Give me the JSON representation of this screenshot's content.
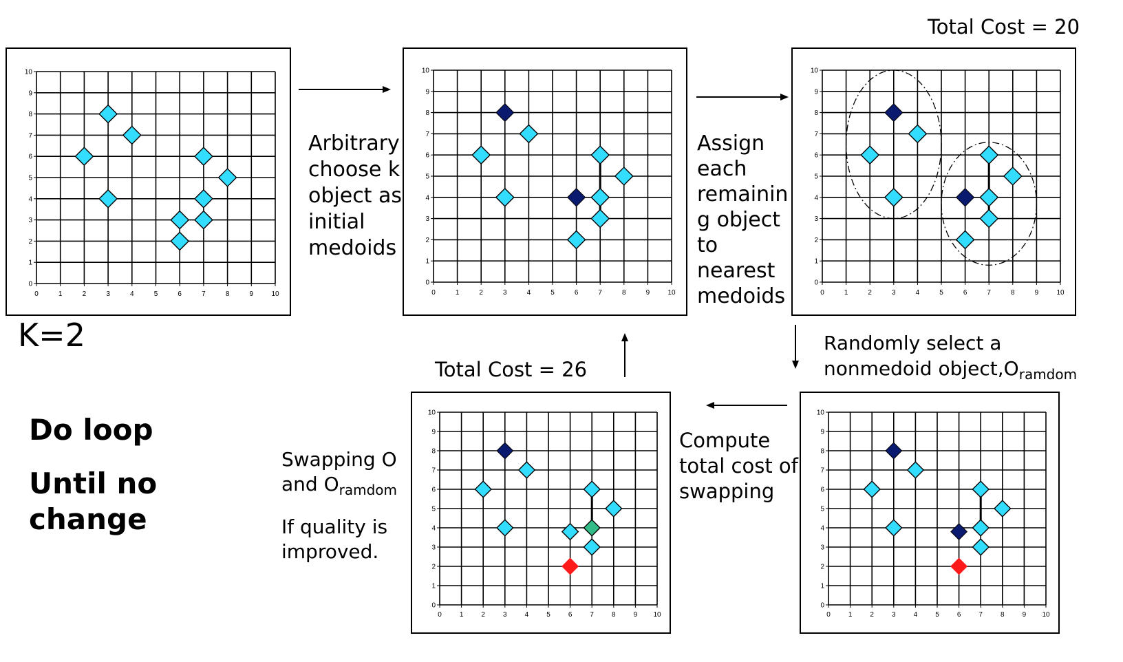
{
  "k_label": "K=2",
  "loop": {
    "line1": "Do loop",
    "line2": "Until no",
    "line3": "change"
  },
  "steps": {
    "choose": [
      "Arbitrary",
      "choose k",
      "object as",
      "initial",
      "medoids"
    ],
    "assign": [
      "Assign",
      "each",
      "remainin",
      "g object",
      "to",
      "nearest",
      "medoids"
    ],
    "random": {
      "line1": "Randomly select a",
      "line2": "nonmedoid object,O",
      "line2_sub": "ramdom"
    },
    "compute": [
      "Compute",
      "total cost of",
      "swapping"
    ],
    "swap": {
      "line1": "Swapping O",
      "line2": "and O",
      "line2_sub": "ramdom",
      "line3": "If quality is",
      "line4": "improved."
    }
  },
  "costs": {
    "top_right": "Total Cost = 20",
    "bottom_left": "Total Cost = 26"
  },
  "colors": {
    "point": "#33ddff",
    "medoid": "#0a1a6e",
    "random": "#ff1a1a",
    "swapped": "#33bb88"
  },
  "chart_data": [
    {
      "type": "scatter",
      "title": "",
      "xlim": [
        0,
        10
      ],
      "ylim": [
        0,
        10
      ],
      "ticks": [
        0,
        1,
        2,
        3,
        4,
        5,
        6,
        7,
        8,
        9,
        10
      ],
      "grid": true,
      "points": [
        {
          "x": 2,
          "y": 6,
          "role": "point"
        },
        {
          "x": 3,
          "y": 8,
          "role": "point"
        },
        {
          "x": 3,
          "y": 4,
          "role": "point"
        },
        {
          "x": 4,
          "y": 7,
          "role": "point"
        },
        {
          "x": 6,
          "y": 2,
          "role": "point"
        },
        {
          "x": 6,
          "y": 3,
          "role": "point"
        },
        {
          "x": 7,
          "y": 4,
          "role": "point"
        },
        {
          "x": 7,
          "y": 3,
          "role": "point"
        },
        {
          "x": 7,
          "y": 6,
          "role": "point"
        },
        {
          "x": 8,
          "y": 5,
          "role": "point"
        }
      ]
    },
    {
      "type": "scatter",
      "title": "",
      "xlim": [
        0,
        10
      ],
      "ylim": [
        0,
        10
      ],
      "ticks": [
        0,
        1,
        2,
        3,
        4,
        5,
        6,
        7,
        8,
        9,
        10
      ],
      "grid": true,
      "points": [
        {
          "x": 3,
          "y": 8,
          "role": "medoid"
        },
        {
          "x": 6,
          "y": 4,
          "role": "medoid"
        },
        {
          "x": 2,
          "y": 6,
          "role": "point"
        },
        {
          "x": 3,
          "y": 4,
          "role": "point"
        },
        {
          "x": 4,
          "y": 7,
          "role": "point"
        },
        {
          "x": 7,
          "y": 6,
          "role": "point"
        },
        {
          "x": 8,
          "y": 5,
          "role": "point"
        },
        {
          "x": 7,
          "y": 4,
          "role": "point"
        },
        {
          "x": 7,
          "y": 3,
          "role": "point"
        },
        {
          "x": 6,
          "y": 2,
          "role": "point"
        }
      ]
    },
    {
      "type": "scatter",
      "title": "",
      "xlim": [
        0,
        10
      ],
      "ylim": [
        0,
        10
      ],
      "ticks": [
        0,
        1,
        2,
        3,
        4,
        5,
        6,
        7,
        8,
        9,
        10
      ],
      "grid": true,
      "clusters": [
        {
          "cx": 3,
          "cy": 6.5,
          "rx": 2,
          "ry": 3.5
        },
        {
          "cx": 7,
          "cy": 3.7,
          "rx": 2,
          "ry": 2.9
        }
      ],
      "points": [
        {
          "x": 3,
          "y": 8,
          "role": "medoid"
        },
        {
          "x": 6,
          "y": 4,
          "role": "medoid"
        },
        {
          "x": 2,
          "y": 6,
          "role": "point"
        },
        {
          "x": 3,
          "y": 4,
          "role": "point"
        },
        {
          "x": 4,
          "y": 7,
          "role": "point"
        },
        {
          "x": 7,
          "y": 6,
          "role": "point"
        },
        {
          "x": 8,
          "y": 5,
          "role": "point"
        },
        {
          "x": 7,
          "y": 4,
          "role": "point"
        },
        {
          "x": 7,
          "y": 3,
          "role": "point"
        },
        {
          "x": 6,
          "y": 2,
          "role": "point"
        }
      ]
    },
    {
      "type": "scatter",
      "title": "",
      "xlim": [
        0,
        10
      ],
      "ylim": [
        0,
        10
      ],
      "ticks": [
        0,
        1,
        2,
        3,
        4,
        5,
        6,
        7,
        8,
        9,
        10
      ],
      "grid": true,
      "points": [
        {
          "x": 3,
          "y": 8,
          "role": "medoid"
        },
        {
          "x": 6,
          "y": 3.8,
          "role": "medoid"
        },
        {
          "x": 6,
          "y": 2,
          "role": "random"
        },
        {
          "x": 2,
          "y": 6,
          "role": "point"
        },
        {
          "x": 3,
          "y": 4,
          "role": "point"
        },
        {
          "x": 4,
          "y": 7,
          "role": "point"
        },
        {
          "x": 7,
          "y": 6,
          "role": "point"
        },
        {
          "x": 8,
          "y": 5,
          "role": "point"
        },
        {
          "x": 7,
          "y": 4,
          "role": "point"
        },
        {
          "x": 7,
          "y": 3,
          "role": "point"
        }
      ]
    },
    {
      "type": "scatter",
      "title": "",
      "xlim": [
        0,
        10
      ],
      "ylim": [
        0,
        10
      ],
      "ticks": [
        0,
        1,
        2,
        3,
        4,
        5,
        6,
        7,
        8,
        9,
        10
      ],
      "grid": true,
      "points": [
        {
          "x": 3,
          "y": 8,
          "role": "medoid"
        },
        {
          "x": 6,
          "y": 2,
          "role": "random"
        },
        {
          "x": 7,
          "y": 4,
          "role": "swapped"
        },
        {
          "x": 2,
          "y": 6,
          "role": "point"
        },
        {
          "x": 3,
          "y": 4,
          "role": "point"
        },
        {
          "x": 4,
          "y": 7,
          "role": "point"
        },
        {
          "x": 7,
          "y": 6,
          "role": "point"
        },
        {
          "x": 8,
          "y": 5,
          "role": "point"
        },
        {
          "x": 6,
          "y": 3.8,
          "role": "point"
        },
        {
          "x": 7,
          "y": 3,
          "role": "point"
        }
      ]
    }
  ]
}
